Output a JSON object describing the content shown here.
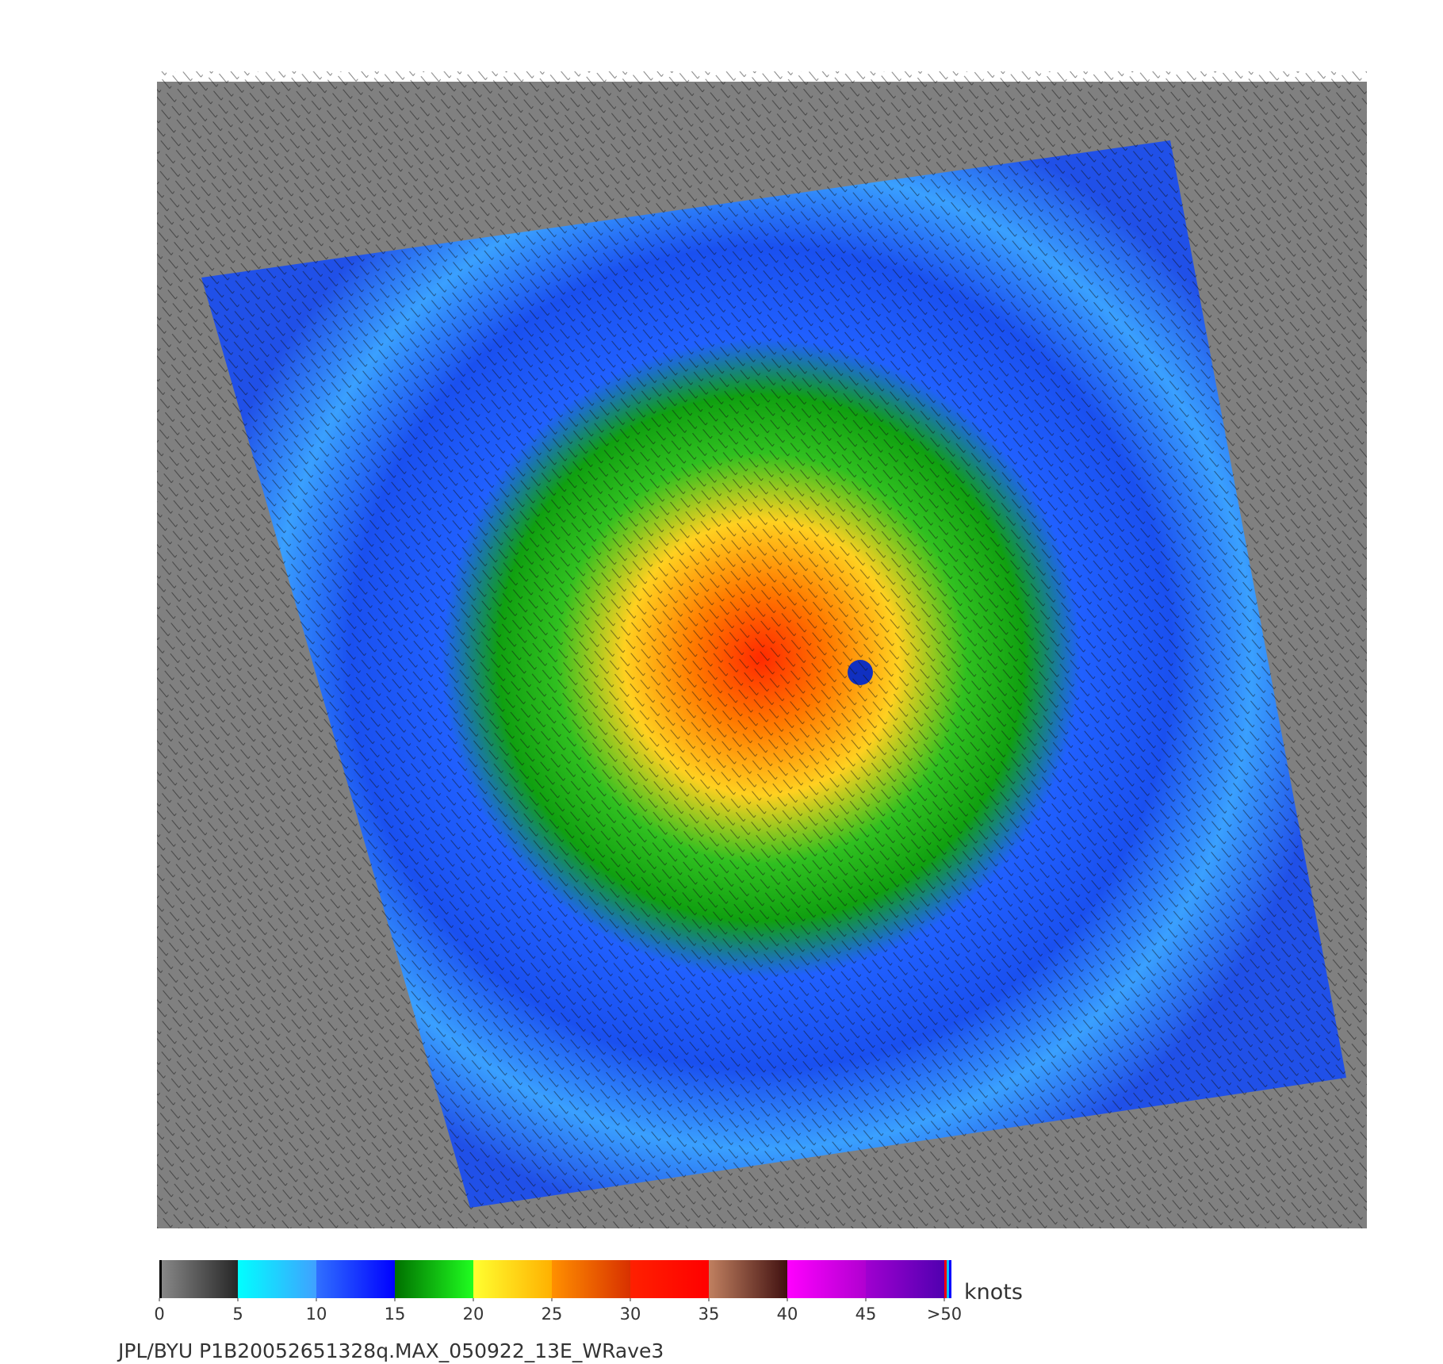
{
  "colorbar": {
    "ticks": [
      0,
      5,
      10,
      15,
      20,
      25,
      30,
      35,
      40,
      45,
      {
        "value": 50,
        "label": ">50"
      }
    ],
    "range": [
      0,
      50
    ],
    "colors": [
      [
        "#8a8a8a",
        "#262626"
      ],
      [
        "#00ffff",
        "#40a0ff"
      ],
      [
        "#3070ff",
        "#0000ff"
      ],
      [
        "#007000",
        "#20ff20"
      ],
      [
        "#ffff30",
        "#ffb000"
      ],
      [
        "#ff9000",
        "#d83000"
      ],
      [
        "#ff2000",
        "#ff0000"
      ],
      [
        "#c08060",
        "#401010"
      ],
      [
        "#ff00ff",
        "#b000d0"
      ],
      [
        "#a000d0",
        "#5000b0"
      ]
    ],
    "unit": "knots"
  },
  "caption": "JPL/BYU  P1B20052651328q.MAX_050922_13E_WRave3"
}
